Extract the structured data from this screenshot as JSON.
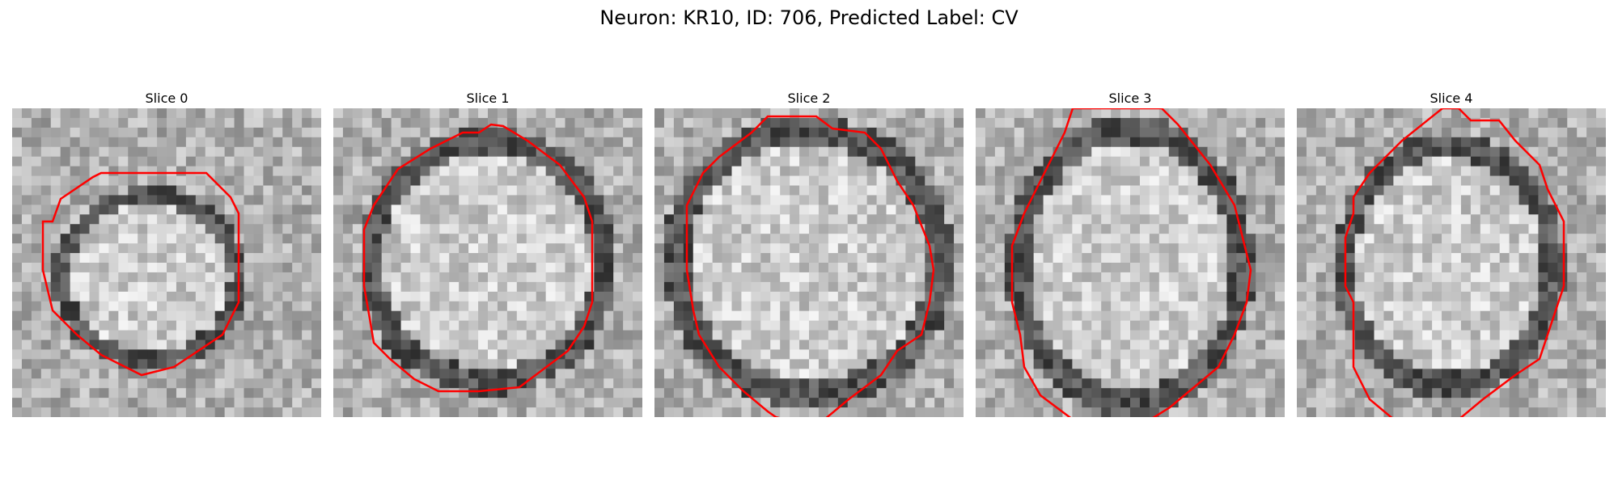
{
  "figure": {
    "title": "Neuron: KR10, ID: 706, Predicted Label: CV"
  },
  "colors": {
    "contour": "#ff0000",
    "background": "#ffffff"
  },
  "slices": [
    {
      "title": "Slice 0"
    },
    {
      "title": "Slice 1"
    },
    {
      "title": "Slice 2"
    },
    {
      "title": "Slice 3"
    },
    {
      "title": "Slice 4"
    }
  ]
}
